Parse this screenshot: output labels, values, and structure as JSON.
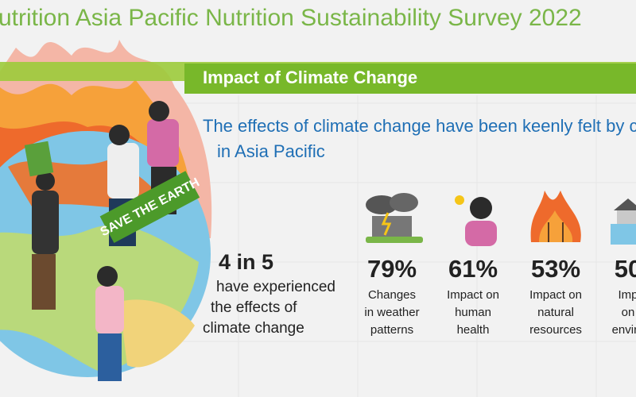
{
  "header": {
    "title": "utrition Asia Pacific Nutrition Sustainability Survey 2022"
  },
  "banner": "Impact of Climate Change",
  "subtitle": [
    "The effects of climate change have been keenly felt by c",
    "in Asia Pacific"
  ],
  "sign": "SAVE THE EARTH",
  "headline": {
    "figure": "4 in 5",
    "lines": [
      "have experienced",
      "the effects of",
      "climate change"
    ]
  },
  "stats": [
    {
      "value": "79%",
      "lines": [
        "Changes",
        "in weather",
        "patterns"
      ]
    },
    {
      "value": "61%",
      "lines": [
        "Impact on",
        "human",
        "health"
      ]
    },
    {
      "value": "53%",
      "lines": [
        "Impact on",
        "natural",
        "resources"
      ]
    },
    {
      "value": "50",
      "lines": [
        "Imp",
        "on",
        "enviro"
      ]
    }
  ]
}
